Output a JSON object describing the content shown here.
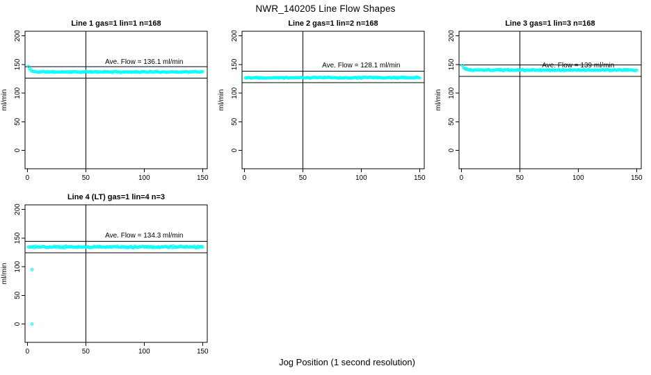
{
  "page": {
    "title": "NWR_140205  Line Flow Shapes",
    "xlabel": "Jog Position (1 second resolution)"
  },
  "chart_data": [
    {
      "type": "scatter",
      "title": "Line 1 gas=1 lin=1 n=168",
      "ylabel": "ml/min",
      "annotation": {
        "text": "Ave. Flow =  136.1  ml/min",
        "x": 100,
        "y": 151
      },
      "ave_flow": 136.1,
      "x_ticks": [
        0,
        50,
        100,
        150
      ],
      "y_ticks": [
        0,
        50,
        100,
        150,
        200
      ],
      "xlim": [
        -2,
        154
      ],
      "ylim": [
        -32,
        208
      ],
      "ref_hlines": [
        146.1,
        126.1
      ],
      "ref_vline": 50,
      "marker_color": "#00ffff",
      "grid": false,
      "series": {
        "x_start": 1,
        "x_end": 150,
        "n": 150,
        "start_value": 146.5,
        "steady_value": 137.0,
        "noise": 1.2,
        "seed": 11,
        "outliers": []
      }
    },
    {
      "type": "scatter",
      "title": "Line 2 gas=1 lin=2 n=168",
      "ylabel": "ml/min",
      "annotation": {
        "text": "Ave. Flow =  128.1  ml/min",
        "x": 100,
        "y": 145
      },
      "ave_flow": 128.1,
      "x_ticks": [
        0,
        50,
        100,
        150
      ],
      "y_ticks": [
        0,
        50,
        100,
        150,
        200
      ],
      "xlim": [
        -2,
        154
      ],
      "ylim": [
        -32,
        208
      ],
      "ref_hlines": [
        138.1,
        118.1
      ],
      "ref_vline": 50,
      "marker_color": "#00ffff",
      "grid": false,
      "series": {
        "x_start": 1,
        "x_end": 150,
        "n": 150,
        "start_value": 127.0,
        "steady_value": 127.0,
        "noise": 1.3,
        "seed": 22,
        "outliers": []
      }
    },
    {
      "type": "scatter",
      "title": "Line 3 gas=1 lin=3 n=168",
      "ylabel": "ml/min",
      "annotation": {
        "text": "Ave. Flow =  139  ml/min",
        "x": 100,
        "y": 145
      },
      "ave_flow": 139,
      "x_ticks": [
        0,
        50,
        100,
        150
      ],
      "y_ticks": [
        0,
        50,
        100,
        150,
        200
      ],
      "xlim": [
        -2,
        154
      ],
      "ylim": [
        -32,
        208
      ],
      "ref_hlines": [
        149,
        129
      ],
      "ref_vline": 50,
      "marker_color": "#00ffff",
      "grid": false,
      "series": {
        "x_start": 1,
        "x_end": 150,
        "n": 150,
        "start_value": 148.0,
        "steady_value": 140.2,
        "noise": 1.2,
        "seed": 33,
        "outliers": []
      }
    },
    {
      "type": "scatter",
      "title": "Line 4 (LT) gas=1 lin=4 n=3",
      "ylabel": "ml/min",
      "annotation": {
        "text": "Ave. Flow =  134.3  ml/min",
        "x": 100,
        "y": 151
      },
      "ave_flow": 134.3,
      "x_ticks": [
        0,
        50,
        100,
        150
      ],
      "y_ticks": [
        0,
        50,
        100,
        150,
        200
      ],
      "xlim": [
        -2,
        154
      ],
      "ylim": [
        -32,
        208
      ],
      "ref_hlines": [
        144.3,
        124.3
      ],
      "ref_vline": 50,
      "marker_color": "#00ffff",
      "grid": false,
      "series": {
        "x_start": 1,
        "x_end": 150,
        "n": 150,
        "start_value": 134.5,
        "steady_value": 134.5,
        "noise": 1.7,
        "seed": 44,
        "outliers": [
          [
            4,
            95
          ],
          [
            4,
            0
          ]
        ]
      }
    }
  ]
}
